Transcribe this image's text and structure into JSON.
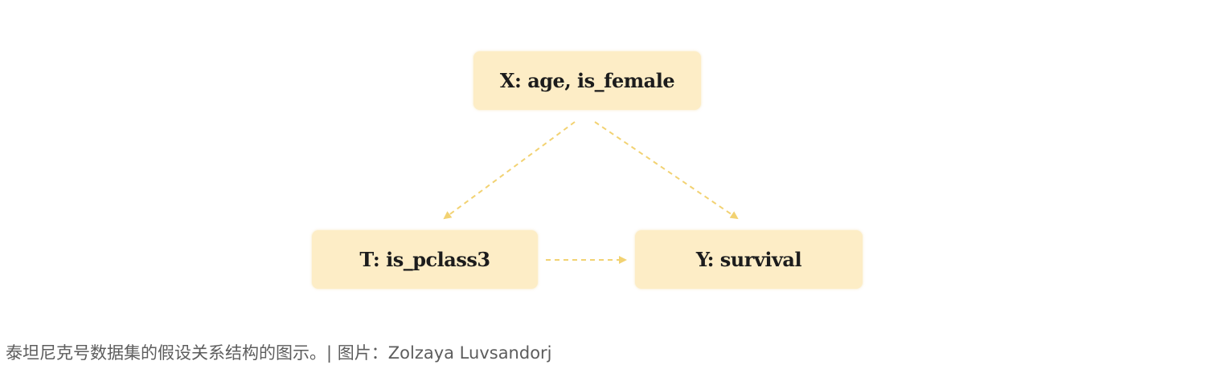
{
  "diagram": {
    "nodes": {
      "x": "X: age, is_female",
      "t": "T: is_pclass3",
      "y": "Y: survival"
    },
    "edges": [
      {
        "from": "x",
        "to": "t",
        "style": "dashed"
      },
      {
        "from": "x",
        "to": "y",
        "style": "dashed"
      },
      {
        "from": "t",
        "to": "y",
        "style": "dashed"
      }
    ],
    "colors": {
      "node_fill": "#fdedc6",
      "edge": "#f2d272",
      "text": "#1c1c1c"
    }
  },
  "caption": "泰坦尼克号数据集的假设关系结构的图示。| 图片：Zolzaya Luvsandorj"
}
